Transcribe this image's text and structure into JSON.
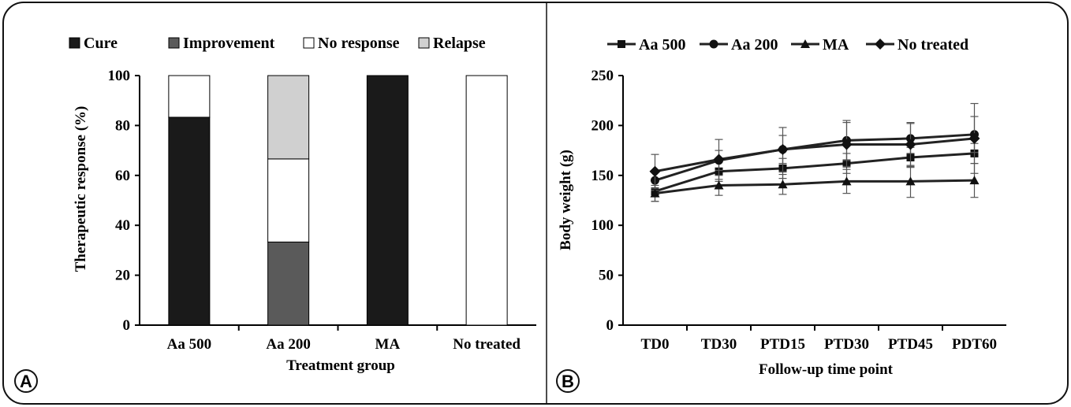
{
  "panels": {
    "a_label": "A",
    "b_label": "B"
  },
  "chart_data": [
    {
      "type": "bar",
      "stacked": true,
      "xlabel": "Treatment group",
      "ylabel": "Therapeutic response (%)",
      "ylim": [
        0,
        100
      ],
      "yticks": [
        0,
        20,
        40,
        60,
        80,
        100
      ],
      "categories": [
        "Aa 500",
        "Aa 200",
        "MA",
        "No treated"
      ],
      "legend_position": "top",
      "series": [
        {
          "name": "Cure",
          "color": "#1a1a1a",
          "values": [
            83.3,
            0,
            100,
            0
          ]
        },
        {
          "name": "Improvement",
          "color": "#5a5a5a",
          "values": [
            0,
            33.3,
            0,
            0
          ]
        },
        {
          "name": "No response",
          "color": "#ffffff",
          "values": [
            16.7,
            33.3,
            0,
            100
          ]
        },
        {
          "name": "Relapse",
          "color": "#d0d0d0",
          "values": [
            0,
            33.4,
            0,
            0
          ]
        }
      ]
    },
    {
      "type": "line",
      "xlabel": "Follow-up time point",
      "ylabel": "Body weight (g)",
      "ylim": [
        0,
        250
      ],
      "yticks": [
        0,
        50,
        100,
        150,
        200,
        250
      ],
      "categories": [
        "TD0",
        "TD30",
        "PTD15",
        "PTD30",
        "PTD45",
        "PDT60"
      ],
      "legend_position": "top",
      "series": [
        {
          "name": "Aa 500",
          "marker": "square",
          "values": [
            134,
            154,
            157,
            162,
            168,
            172
          ],
          "errors": [
            10,
            10,
            10,
            10,
            10,
            10
          ]
        },
        {
          "name": "Aa 200",
          "marker": "circle",
          "values": [
            145,
            165,
            176,
            185,
            187,
            191
          ],
          "errors": [
            10,
            10,
            14,
            20,
            15,
            18
          ]
        },
        {
          "name": "MA",
          "marker": "triangle",
          "values": [
            132,
            140,
            141,
            144,
            144,
            145
          ],
          "errors": [
            8,
            10,
            10,
            12,
            16,
            17
          ]
        },
        {
          "name": "No treated",
          "marker": "diamond",
          "values": [
            154,
            166,
            176,
            181,
            181,
            187
          ],
          "errors": [
            17,
            20,
            22,
            22,
            22,
            35
          ]
        }
      ]
    }
  ]
}
